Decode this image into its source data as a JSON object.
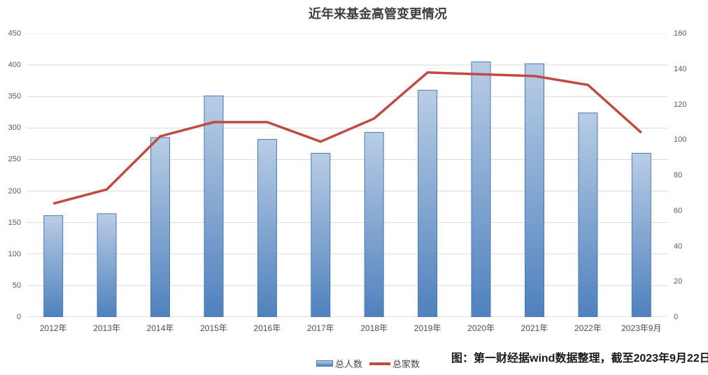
{
  "title": "近年来基金高管变更情况",
  "caption": "图：第一财经据wind数据整理，截至2023年9月22日",
  "legend": {
    "bar_label": "总人数",
    "line_label": "总家数"
  },
  "colors": {
    "bar_gradient_top": "#b9cde5",
    "bar_gradient_bottom": "#4f81bd",
    "bar_border": "#4a79b1",
    "line": "#bf4b44",
    "grid": "#d9d9d9",
    "axis_line": "#c3c3c3",
    "axis_text": "#5a5a5a",
    "title_text": "#3f3f3f"
  },
  "chart_data": {
    "type": "bar",
    "subtype": "dual-axis bar+line combo",
    "title": "近年来基金高管变更情况",
    "categories": [
      "2012年",
      "2013年",
      "2014年",
      "2015年",
      "2016年",
      "2017年",
      "2018年",
      "2019年",
      "2020年",
      "2021年",
      "2022年",
      "2023年9月"
    ],
    "series": [
      {
        "name": "总人数",
        "type": "bar",
        "axis": "left",
        "values": [
          161,
          164,
          285,
          351,
          282,
          260,
          293,
          360,
          405,
          402,
          324,
          260
        ]
      },
      {
        "name": "总家数",
        "type": "line",
        "axis": "right",
        "values": [
          64,
          72,
          102,
          110,
          110,
          99,
          112,
          138,
          137,
          136,
          131,
          104
        ]
      }
    ],
    "left_axis": {
      "min": 0,
      "max": 450,
      "step": 50,
      "ticks": [
        450,
        400,
        350,
        300,
        250,
        200,
        150,
        100,
        50,
        0
      ]
    },
    "right_axis": {
      "min": 0,
      "max": 160,
      "step": 20,
      "ticks": [
        160,
        140,
        120,
        100,
        80,
        60,
        40,
        20,
        0
      ]
    },
    "grid": true,
    "legend_position": "bottom-center",
    "source_note": "图：第一财经据wind数据整理，截至2023年9月22日"
  }
}
